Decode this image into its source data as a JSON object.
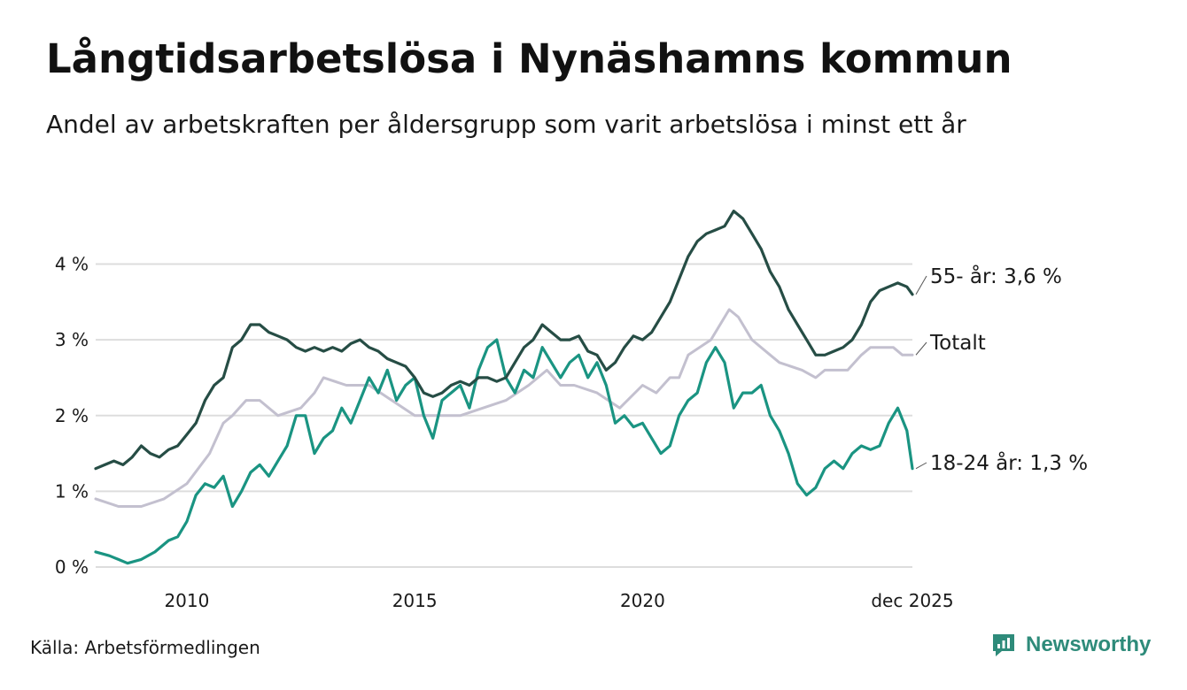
{
  "title": "Långtidsarbetslösa i Nynäshamns kommun",
  "subtitle": "Andel av arbetskraften per åldersgrupp som varit arbetslösa i minst ett år",
  "source": "Källa: Arbetsförmedlingen",
  "brand": {
    "name": "Newsworthy",
    "icon": "newsworthy-logo-icon"
  },
  "colors": {
    "senior": "#264d45",
    "total": "#c3c0cf",
    "youth": "#1a9482",
    "grid": "#dddddd"
  },
  "chart_data": {
    "type": "line",
    "xlim": [
      2008.0,
      2025.92
    ],
    "ylim": [
      0,
      4.8
    ],
    "yticks": [
      0,
      1,
      2,
      3,
      4
    ],
    "ytick_labels": [
      "0 %",
      "1 %",
      "2 %",
      "3 %",
      "4 %"
    ],
    "xticks": [
      2010,
      2015,
      2020,
      2025.92
    ],
    "xtick_labels": [
      "2010",
      "2015",
      "2020",
      "dec 2025"
    ],
    "series": [
      {
        "name": "Totalt",
        "color": "#c3c0cf",
        "end_label": "Totalt",
        "points": [
          [
            2008.0,
            0.9
          ],
          [
            2008.5,
            0.8
          ],
          [
            2009.0,
            0.8
          ],
          [
            2009.5,
            0.9
          ],
          [
            2010.0,
            1.1
          ],
          [
            2010.5,
            1.5
          ],
          [
            2010.8,
            1.9
          ],
          [
            2011.0,
            2.0
          ],
          [
            2011.3,
            2.2
          ],
          [
            2011.6,
            2.2
          ],
          [
            2012.0,
            2.0
          ],
          [
            2012.5,
            2.1
          ],
          [
            2012.8,
            2.3
          ],
          [
            2013.0,
            2.5
          ],
          [
            2013.5,
            2.4
          ],
          [
            2014.0,
            2.4
          ],
          [
            2014.5,
            2.2
          ],
          [
            2015.0,
            2.0
          ],
          [
            2015.5,
            2.0
          ],
          [
            2016.0,
            2.0
          ],
          [
            2016.5,
            2.1
          ],
          [
            2017.0,
            2.2
          ],
          [
            2017.5,
            2.4
          ],
          [
            2017.9,
            2.6
          ],
          [
            2018.2,
            2.4
          ],
          [
            2018.5,
            2.4
          ],
          [
            2019.0,
            2.3
          ],
          [
            2019.5,
            2.1
          ],
          [
            2020.0,
            2.4
          ],
          [
            2020.3,
            2.3
          ],
          [
            2020.6,
            2.5
          ],
          [
            2020.8,
            2.5
          ],
          [
            2021.0,
            2.8
          ],
          [
            2021.5,
            3.0
          ],
          [
            2021.9,
            3.4
          ],
          [
            2022.1,
            3.3
          ],
          [
            2022.4,
            3.0
          ],
          [
            2022.8,
            2.8
          ],
          [
            2023.0,
            2.7
          ],
          [
            2023.5,
            2.6
          ],
          [
            2023.8,
            2.5
          ],
          [
            2024.0,
            2.6
          ],
          [
            2024.5,
            2.6
          ],
          [
            2024.8,
            2.8
          ],
          [
            2025.0,
            2.9
          ],
          [
            2025.5,
            2.9
          ],
          [
            2025.7,
            2.8
          ],
          [
            2025.92,
            2.8
          ]
        ]
      },
      {
        "name": "18-24 år",
        "color": "#1a9482",
        "end_label": "18-24 år: 1,3 %",
        "points": [
          [
            2008.0,
            0.2
          ],
          [
            2008.3,
            0.15
          ],
          [
            2008.5,
            0.1
          ],
          [
            2008.7,
            0.05
          ],
          [
            2009.0,
            0.1
          ],
          [
            2009.3,
            0.2
          ],
          [
            2009.6,
            0.35
          ],
          [
            2009.8,
            0.4
          ],
          [
            2010.0,
            0.6
          ],
          [
            2010.2,
            0.95
          ],
          [
            2010.4,
            1.1
          ],
          [
            2010.6,
            1.05
          ],
          [
            2010.8,
            1.2
          ],
          [
            2011.0,
            0.8
          ],
          [
            2011.2,
            1.0
          ],
          [
            2011.4,
            1.25
          ],
          [
            2011.6,
            1.35
          ],
          [
            2011.8,
            1.2
          ],
          [
            2012.0,
            1.4
          ],
          [
            2012.2,
            1.6
          ],
          [
            2012.4,
            2.0
          ],
          [
            2012.6,
            2.0
          ],
          [
            2012.8,
            1.5
          ],
          [
            2013.0,
            1.7
          ],
          [
            2013.2,
            1.8
          ],
          [
            2013.4,
            2.1
          ],
          [
            2013.6,
            1.9
          ],
          [
            2013.8,
            2.2
          ],
          [
            2014.0,
            2.5
          ],
          [
            2014.2,
            2.3
          ],
          [
            2014.4,
            2.6
          ],
          [
            2014.6,
            2.2
          ],
          [
            2014.8,
            2.4
          ],
          [
            2015.0,
            2.5
          ],
          [
            2015.2,
            2.0
          ],
          [
            2015.4,
            1.7
          ],
          [
            2015.6,
            2.2
          ],
          [
            2015.8,
            2.3
          ],
          [
            2016.0,
            2.4
          ],
          [
            2016.2,
            2.1
          ],
          [
            2016.4,
            2.6
          ],
          [
            2016.6,
            2.9
          ],
          [
            2016.8,
            3.0
          ],
          [
            2017.0,
            2.5
          ],
          [
            2017.2,
            2.3
          ],
          [
            2017.4,
            2.6
          ],
          [
            2017.6,
            2.5
          ],
          [
            2017.8,
            2.9
          ],
          [
            2018.0,
            2.7
          ],
          [
            2018.2,
            2.5
          ],
          [
            2018.4,
            2.7
          ],
          [
            2018.6,
            2.8
          ],
          [
            2018.8,
            2.5
          ],
          [
            2019.0,
            2.7
          ],
          [
            2019.2,
            2.4
          ],
          [
            2019.4,
            1.9
          ],
          [
            2019.6,
            2.0
          ],
          [
            2019.8,
            1.85
          ],
          [
            2020.0,
            1.9
          ],
          [
            2020.2,
            1.7
          ],
          [
            2020.4,
            1.5
          ],
          [
            2020.6,
            1.6
          ],
          [
            2020.8,
            2.0
          ],
          [
            2021.0,
            2.2
          ],
          [
            2021.2,
            2.3
          ],
          [
            2021.4,
            2.7
          ],
          [
            2021.6,
            2.9
          ],
          [
            2021.8,
            2.7
          ],
          [
            2022.0,
            2.1
          ],
          [
            2022.2,
            2.3
          ],
          [
            2022.4,
            2.3
          ],
          [
            2022.6,
            2.4
          ],
          [
            2022.8,
            2.0
          ],
          [
            2023.0,
            1.8
          ],
          [
            2023.2,
            1.5
          ],
          [
            2023.4,
            1.1
          ],
          [
            2023.6,
            0.95
          ],
          [
            2023.8,
            1.05
          ],
          [
            2024.0,
            1.3
          ],
          [
            2024.2,
            1.4
          ],
          [
            2024.4,
            1.3
          ],
          [
            2024.6,
            1.5
          ],
          [
            2024.8,
            1.6
          ],
          [
            2025.0,
            1.55
          ],
          [
            2025.2,
            1.6
          ],
          [
            2025.4,
            1.9
          ],
          [
            2025.6,
            2.1
          ],
          [
            2025.8,
            1.8
          ],
          [
            2025.92,
            1.3
          ]
        ]
      },
      {
        "name": "55- år",
        "color": "#264d45",
        "end_label": "55- år: 3,6 %",
        "points": [
          [
            2008.0,
            1.3
          ],
          [
            2008.2,
            1.35
          ],
          [
            2008.4,
            1.4
          ],
          [
            2008.6,
            1.35
          ],
          [
            2008.8,
            1.45
          ],
          [
            2009.0,
            1.6
          ],
          [
            2009.2,
            1.5
          ],
          [
            2009.4,
            1.45
          ],
          [
            2009.6,
            1.55
          ],
          [
            2009.8,
            1.6
          ],
          [
            2010.0,
            1.75
          ],
          [
            2010.2,
            1.9
          ],
          [
            2010.4,
            2.2
          ],
          [
            2010.6,
            2.4
          ],
          [
            2010.8,
            2.5
          ],
          [
            2011.0,
            2.9
          ],
          [
            2011.2,
            3.0
          ],
          [
            2011.4,
            3.2
          ],
          [
            2011.6,
            3.2
          ],
          [
            2011.8,
            3.1
          ],
          [
            2012.0,
            3.05
          ],
          [
            2012.2,
            3.0
          ],
          [
            2012.4,
            2.9
          ],
          [
            2012.6,
            2.85
          ],
          [
            2012.8,
            2.9
          ],
          [
            2013.0,
            2.85
          ],
          [
            2013.2,
            2.9
          ],
          [
            2013.4,
            2.85
          ],
          [
            2013.6,
            2.95
          ],
          [
            2013.8,
            3.0
          ],
          [
            2014.0,
            2.9
          ],
          [
            2014.2,
            2.85
          ],
          [
            2014.4,
            2.75
          ],
          [
            2014.6,
            2.7
          ],
          [
            2014.8,
            2.65
          ],
          [
            2015.0,
            2.5
          ],
          [
            2015.2,
            2.3
          ],
          [
            2015.4,
            2.25
          ],
          [
            2015.6,
            2.3
          ],
          [
            2015.8,
            2.4
          ],
          [
            2016.0,
            2.45
          ],
          [
            2016.2,
            2.4
          ],
          [
            2016.4,
            2.5
          ],
          [
            2016.6,
            2.5
          ],
          [
            2016.8,
            2.45
          ],
          [
            2017.0,
            2.5
          ],
          [
            2017.2,
            2.7
          ],
          [
            2017.4,
            2.9
          ],
          [
            2017.6,
            3.0
          ],
          [
            2017.8,
            3.2
          ],
          [
            2018.0,
            3.1
          ],
          [
            2018.2,
            3.0
          ],
          [
            2018.4,
            3.0
          ],
          [
            2018.6,
            3.05
          ],
          [
            2018.8,
            2.85
          ],
          [
            2019.0,
            2.8
          ],
          [
            2019.2,
            2.6
          ],
          [
            2019.4,
            2.7
          ],
          [
            2019.6,
            2.9
          ],
          [
            2019.8,
            3.05
          ],
          [
            2020.0,
            3.0
          ],
          [
            2020.2,
            3.1
          ],
          [
            2020.4,
            3.3
          ],
          [
            2020.6,
            3.5
          ],
          [
            2020.8,
            3.8
          ],
          [
            2021.0,
            4.1
          ],
          [
            2021.2,
            4.3
          ],
          [
            2021.4,
            4.4
          ],
          [
            2021.6,
            4.45
          ],
          [
            2021.8,
            4.5
          ],
          [
            2022.0,
            4.7
          ],
          [
            2022.2,
            4.6
          ],
          [
            2022.4,
            4.4
          ],
          [
            2022.6,
            4.2
          ],
          [
            2022.8,
            3.9
          ],
          [
            2023.0,
            3.7
          ],
          [
            2023.2,
            3.4
          ],
          [
            2023.4,
            3.2
          ],
          [
            2023.6,
            3.0
          ],
          [
            2023.8,
            2.8
          ],
          [
            2024.0,
            2.8
          ],
          [
            2024.2,
            2.85
          ],
          [
            2024.4,
            2.9
          ],
          [
            2024.6,
            3.0
          ],
          [
            2024.8,
            3.2
          ],
          [
            2025.0,
            3.5
          ],
          [
            2025.2,
            3.65
          ],
          [
            2025.4,
            3.7
          ],
          [
            2025.6,
            3.75
          ],
          [
            2025.8,
            3.7
          ],
          [
            2025.92,
            3.6
          ]
        ]
      }
    ]
  }
}
